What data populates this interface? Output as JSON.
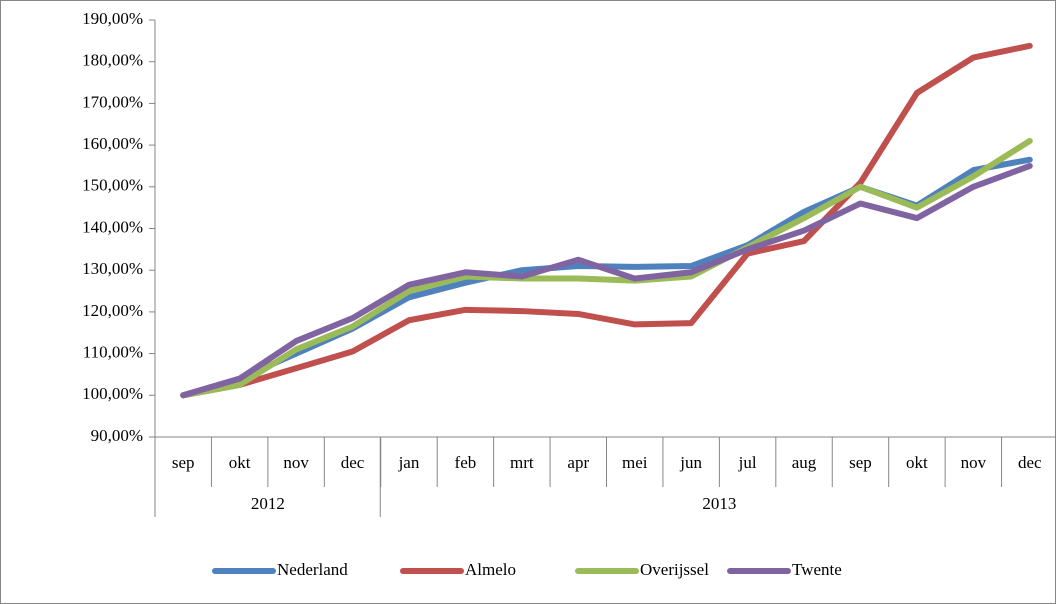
{
  "chart_data": {
    "type": "line",
    "categories": [
      "sep",
      "okt",
      "nov",
      "dec",
      "jan",
      "feb",
      "mrt",
      "apr",
      "mei",
      "jun",
      "jul",
      "aug",
      "sep",
      "okt",
      "nov",
      "dec"
    ],
    "groups": [
      {
        "name": "2012",
        "span": 4
      },
      {
        "name": "2013",
        "span": 12
      }
    ],
    "series": [
      {
        "name": "Nederland",
        "color": "#4f81bd",
        "values": [
          100,
          104,
          110,
          116,
          123.5,
          127,
          130,
          131,
          130.8,
          131,
          136,
          144,
          150,
          145.5,
          154,
          156.5
        ]
      },
      {
        "name": "Almelo",
        "color": "#c0504d",
        "values": [
          100,
          102.5,
          106.5,
          110.5,
          118,
          120.5,
          120.2,
          119.5,
          117,
          117.3,
          134,
          137,
          151,
          172.5,
          181,
          183.8
        ]
      },
      {
        "name": "Overijssel",
        "color": "#9bbb59",
        "values": [
          100,
          102.5,
          111,
          116.5,
          125,
          128.5,
          128,
          128,
          127.5,
          128.5,
          135.5,
          142.5,
          150,
          145,
          152.5,
          161
        ]
      },
      {
        "name": "Twente",
        "color": "#8064a2",
        "values": [
          100,
          104,
          113,
          118.5,
          126.5,
          129.5,
          128.5,
          132.5,
          128,
          129.5,
          135,
          139.5,
          146,
          142.5,
          150,
          155
        ]
      }
    ],
    "ylim": [
      90,
      190
    ],
    "yticks": [
      {
        "value": 90,
        "label": "90,00%"
      },
      {
        "value": 100,
        "label": "100,00%"
      },
      {
        "value": 110,
        "label": "110,00%"
      },
      {
        "value": 120,
        "label": "120,00%"
      },
      {
        "value": 130,
        "label": "130,00%"
      },
      {
        "value": 140,
        "label": "140,00%"
      },
      {
        "value": 150,
        "label": "150,00%"
      },
      {
        "value": 160,
        "label": "160,00%"
      },
      {
        "value": 170,
        "label": "170,00%"
      },
      {
        "value": 180,
        "label": "180,00%"
      },
      {
        "value": 190,
        "label": "190,00%"
      }
    ],
    "grid": false,
    "legend": "bottom"
  }
}
